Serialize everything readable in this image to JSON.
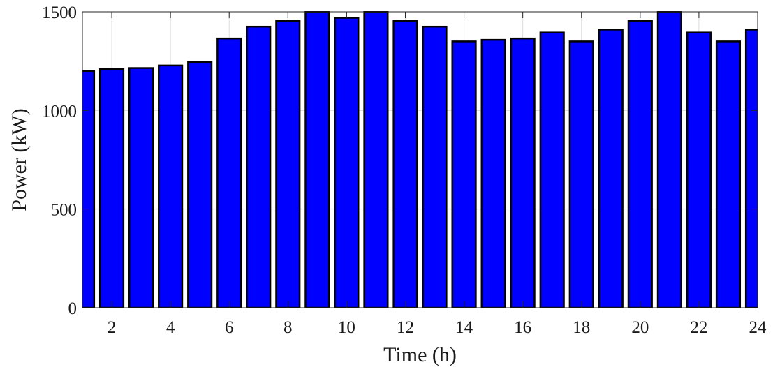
{
  "chart_data": {
    "type": "bar",
    "xlabel": "Time (h)",
    "ylabel": "Power (kW)",
    "xlim": [
      1,
      24
    ],
    "ylim": [
      0,
      1500
    ],
    "xticks": [
      2,
      4,
      6,
      8,
      10,
      12,
      14,
      16,
      18,
      20,
      22,
      24
    ],
    "yticks": [
      0,
      500,
      1000,
      1500
    ],
    "grid": true,
    "categories": [
      1,
      2,
      3,
      4,
      5,
      6,
      7,
      8,
      9,
      10,
      11,
      12,
      13,
      14,
      15,
      16,
      17,
      18,
      19,
      20,
      21,
      22,
      23,
      24
    ],
    "values": [
      1200,
      1210,
      1215,
      1228,
      1245,
      1365,
      1425,
      1455,
      1500,
      1470,
      1500,
      1455,
      1425,
      1350,
      1358,
      1365,
      1395,
      1350,
      1410,
      1455,
      1500,
      1395,
      1350,
      1410
    ],
    "bar_color": "#0000ff",
    "edge_color": "#000000"
  }
}
